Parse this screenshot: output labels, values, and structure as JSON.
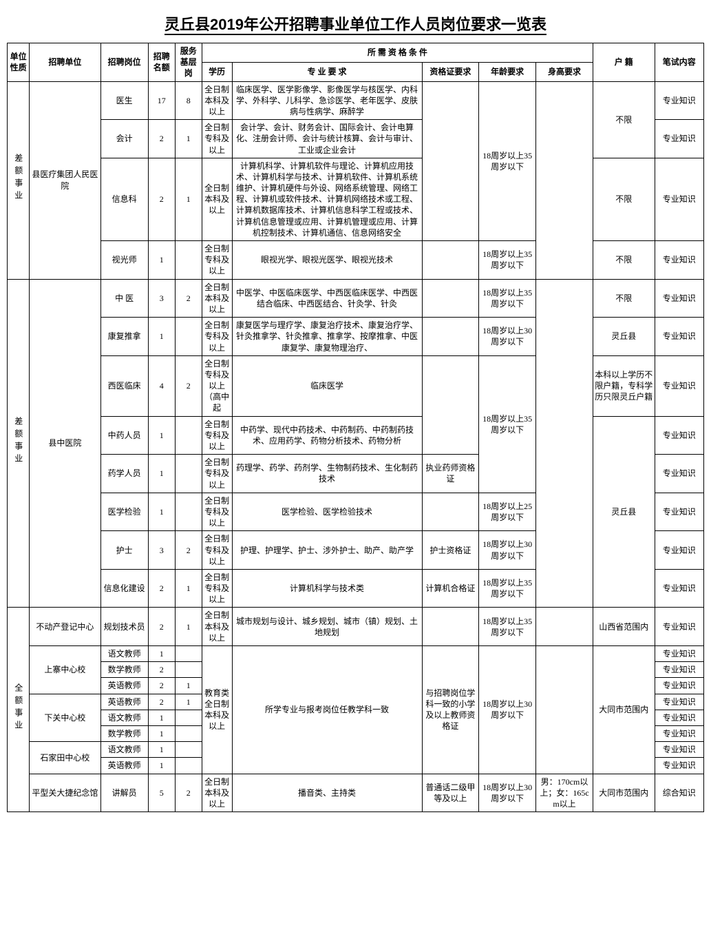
{
  "title": "灵丘县2019年公开招聘事业单位工作人员岗位要求一览表",
  "headers": {
    "nature": "单位性质",
    "unit": "招聘单位",
    "post": "招聘岗位",
    "quota": "招聘名额",
    "base": "服务基层岗",
    "req_group": "所 需 资 格 条 件",
    "edu": "学历",
    "major": "专 业 要 求",
    "cert": "资格证要求",
    "age": "年龄要求",
    "height": "身高要求",
    "hukou": "户 籍",
    "exam": "笔试内容"
  },
  "nature1": "差额事业",
  "nature2": "差额事业",
  "nature3": "全额事业",
  "unit1": "县医疗集团人民医院",
  "unit2": "县中医院",
  "unit_bdc": "不动产登记中心",
  "unit_sz": "上寨中心校",
  "unit_xg": "下关中心校",
  "unit_sjt": "石家田中心校",
  "unit_pxg": "平型关大捷纪念馆",
  "edu_bk": "全日制本科及以上",
  "edu_zk": "全日制专科及以上",
  "edu_zk_gz": "全日制专科及以上（高中起",
  "edu_jyl": "教育类全日制本科及以上",
  "age_1835": "18周岁以上35周岁以下",
  "age_1830": "18周岁以上30周岁以下",
  "age_1825": "18周岁以上25周岁以下",
  "hukou_bx": "不限",
  "hukou_lq": "灵丘县",
  "hukou_sx": "山西省范围内",
  "hukou_dt": "大同市范围内",
  "hukou_mix": "本科以上学历不限户籍，专科学历只限灵丘户籍",
  "exam_zy": "专业知识",
  "exam_zh": "综合知识",
  "r": {
    "ys": {
      "post": "医生",
      "quota": "17",
      "base": "8",
      "major": "临床医学、医学影像学、影像医学与核医学、内科学、外科学、儿科学、急诊医学、老年医学、皮肤病与性病学、麻醉学"
    },
    "kj": {
      "post": "会计",
      "quota": "2",
      "base": "1",
      "major": "会计学、会计、财务会计、国际会计、会计电算化、注册会计师、会计与统计核算、会计与审计、工业或企业会计"
    },
    "xxk": {
      "post": "信息科",
      "quota": "2",
      "base": "1",
      "major": "计算机科学、计算机软件与理论、计算机应用技术、计算机科学与技术、计算机软件、计算机系统维护、计算机硬件与外设、网络系统管理、网络工程、计算机或软件技术、计算机网络技术或工程、计算机数据库技术、计算机信息科学工程或技术、计算机信息管理或应用、计算机管理或应用、计算机控制技术、计算机通信、信息网络安全"
    },
    "sgs": {
      "post": "视光师",
      "quota": "1",
      "major": "眼视光学、眼视光医学、眼视光技术"
    },
    "zy": {
      "post": "中 医",
      "quota": "3",
      "base": "2",
      "major": "中医学、中医临床医学、中西医临床医学、中西医结合临床、中西医结合、针灸学、针灸"
    },
    "kf": {
      "post": "康复推拿",
      "quota": "1",
      "major": "康复医学与理疗学、康复治疗技术、康复治疗学、针灸推拿学、针灸推拿、推拿学、按摩推拿、中医康复学、康复物理治疗、"
    },
    "xylc": {
      "post": "西医临床",
      "quota": "4",
      "base": "2",
      "major": "临床医学"
    },
    "zyry": {
      "post": "中药人员",
      "quota": "1",
      "major": "中药学、现代中药技术、中药制药、中药制药技术、应用药学、药物分析技术、药物分析"
    },
    "yxry": {
      "post": "药学人员",
      "quota": "1",
      "major": "药理学、药学、药剂学、生物制药技术、生化制药技术",
      "cert": "执业药师资格证"
    },
    "yxjy": {
      "post": "医学检验",
      "quota": "1",
      "major": "医学检验、医学检验技术"
    },
    "hs": {
      "post": "护士",
      "quota": "3",
      "base": "2",
      "major": "护理、护理学、护士、涉外护士、助产、助产学",
      "cert": "护士资格证"
    },
    "xxh": {
      "post": "信息化建设",
      "quota": "2",
      "base": "1",
      "major": "计算机科学与技术类",
      "cert": "计算机合格证"
    },
    "ghjs": {
      "post": "规划技术员",
      "quota": "2",
      "base": "1",
      "major": "城市规划与设计、城乡规划、城市（镇）规划、土地规划"
    },
    "yw_sz": {
      "post": "语文教师",
      "quota": "1"
    },
    "sx_sz": {
      "post": "数学教师",
      "quota": "2"
    },
    "yy_sz": {
      "post": "英语教师",
      "quota": "2",
      "base": "1"
    },
    "yy_xg": {
      "post": "英语教师",
      "quota": "2",
      "base": "1"
    },
    "yw_xg": {
      "post": "语文教师",
      "quota": "1"
    },
    "sx_xg": {
      "post": "数学教师",
      "quota": "1"
    },
    "yw_sjt": {
      "post": "语文教师",
      "quota": "1"
    },
    "yy_sjt": {
      "post": "英语教师",
      "quota": "1"
    },
    "jjy": {
      "post": "讲解员",
      "quota": "5",
      "base": "2",
      "major": "播音类、主持类",
      "cert": "普通话二级甲等及以上",
      "height": "男：170cm以上；女：165cm以上"
    },
    "teacher_major": "所学专业与报考岗位任教学科一致",
    "teacher_cert": "与招聘岗位学科一致的小学及以上教师资格证"
  }
}
